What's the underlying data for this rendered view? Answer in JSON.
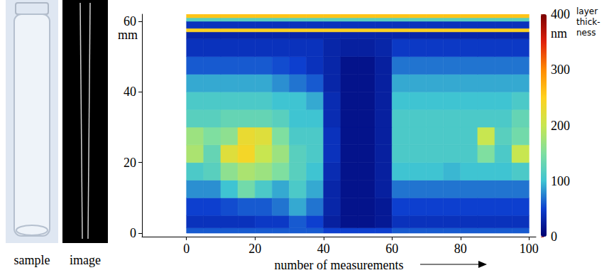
{
  "panels": [
    {
      "caption": "sample"
    },
    {
      "caption": "image"
    }
  ],
  "chart_data": {
    "type": "heatmap",
    "xlabel": "number of measurements",
    "ylabel": "mm",
    "xlim": [
      -13,
      102
    ],
    "xticks": [
      0,
      20,
      40,
      60,
      80,
      100
    ],
    "ylim": [
      -1,
      62
    ],
    "yticks": [
      0,
      20,
      40,
      60
    ],
    "x_edges": [
      0,
      5,
      10,
      15,
      20,
      25,
      30,
      35,
      40,
      45,
      50,
      55,
      60,
      65,
      70,
      75,
      80,
      85,
      90,
      95,
      100
    ],
    "y_edges": [
      0,
      1.5,
      5,
      10,
      15,
      20,
      25,
      30,
      35,
      40,
      45,
      50,
      55,
      57,
      58,
      60,
      61,
      62
    ],
    "cells": [
      [
        60,
        60,
        60,
        60,
        60,
        60,
        60,
        60,
        50,
        50,
        50,
        50,
        60,
        60,
        60,
        60,
        60,
        60,
        60,
        60
      ],
      [
        40,
        40,
        40,
        40,
        45,
        45,
        60,
        50,
        25,
        15,
        15,
        20,
        40,
        40,
        40,
        40,
        40,
        40,
        40,
        40
      ],
      [
        50,
        50,
        55,
        60,
        60,
        70,
        90,
        70,
        30,
        15,
        15,
        20,
        50,
        50,
        50,
        50,
        50,
        50,
        50,
        50
      ],
      [
        80,
        80,
        100,
        140,
        110,
        90,
        110,
        90,
        30,
        15,
        15,
        25,
        70,
        70,
        70,
        70,
        70,
        70,
        70,
        70
      ],
      [
        110,
        120,
        160,
        180,
        170,
        150,
        120,
        100,
        35,
        15,
        15,
        25,
        100,
        100,
        100,
        95,
        100,
        100,
        100,
        110
      ],
      [
        180,
        130,
        220,
        240,
        200,
        170,
        120,
        110,
        40,
        15,
        15,
        25,
        110,
        110,
        110,
        110,
        110,
        150,
        110,
        200
      ],
      [
        170,
        150,
        160,
        230,
        220,
        150,
        110,
        110,
        40,
        15,
        15,
        25,
        110,
        110,
        110,
        110,
        110,
        200,
        120,
        140
      ],
      [
        120,
        120,
        130,
        130,
        130,
        120,
        100,
        100,
        35,
        15,
        15,
        25,
        110,
        110,
        110,
        110,
        110,
        110,
        110,
        130
      ],
      [
        110,
        110,
        110,
        110,
        110,
        100,
        100,
        90,
        35,
        15,
        15,
        25,
        100,
        100,
        100,
        100,
        100,
        100,
        100,
        110
      ],
      [
        90,
        90,
        90,
        90,
        90,
        80,
        70,
        60,
        30,
        15,
        15,
        25,
        90,
        90,
        90,
        90,
        90,
        90,
        90,
        90
      ],
      [
        60,
        60,
        60,
        60,
        60,
        55,
        50,
        40,
        30,
        15,
        15,
        25,
        70,
        70,
        70,
        70,
        70,
        70,
        70,
        70
      ],
      [
        40,
        40,
        40,
        40,
        40,
        40,
        40,
        40,
        30,
        25,
        25,
        30,
        45,
        45,
        45,
        45,
        45,
        45,
        45,
        45
      ],
      [
        30,
        30,
        30,
        30,
        30,
        30,
        30,
        30,
        30,
        30,
        30,
        30,
        30,
        30,
        30,
        30,
        30,
        30,
        30,
        30
      ],
      [
        250,
        250,
        250,
        250,
        250,
        250,
        250,
        250,
        250,
        250,
        250,
        250,
        250,
        250,
        250,
        250,
        250,
        250,
        250,
        250
      ],
      [
        40,
        40,
        40,
        40,
        40,
        40,
        40,
        40,
        40,
        40,
        40,
        40,
        40,
        40,
        40,
        40,
        40,
        40,
        40,
        40
      ],
      [
        120,
        120,
        120,
        120,
        120,
        120,
        120,
        120,
        120,
        120,
        120,
        120,
        120,
        120,
        120,
        120,
        120,
        120,
        120,
        120
      ],
      [
        260,
        260,
        260,
        260,
        260,
        260,
        260,
        260,
        260,
        260,
        260,
        260,
        260,
        260,
        260,
        260,
        260,
        260,
        260,
        260
      ]
    ],
    "colorbar": {
      "range": [
        0,
        400
      ],
      "ticks": [
        0,
        100,
        200,
        300,
        400
      ],
      "unit": "nm",
      "label": "layer thick-ness"
    }
  }
}
